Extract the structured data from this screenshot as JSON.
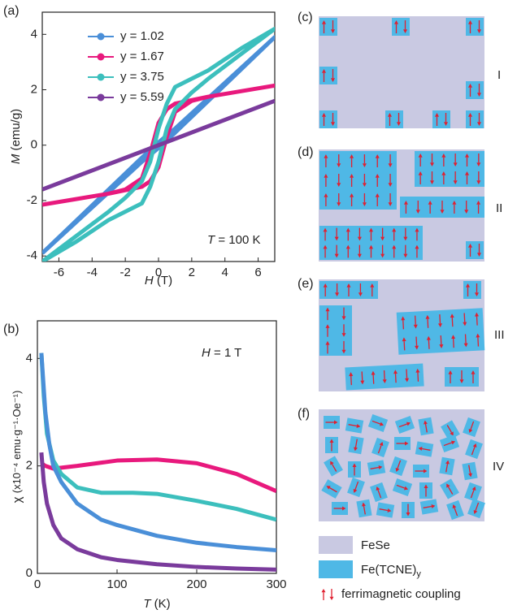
{
  "chart_data": [
    {
      "type": "line",
      "panel_label": "(a)",
      "xlabel": {
        "symbol": "H",
        "unit": "(T)"
      },
      "ylabel": {
        "symbol": "M",
        "unit": "(emu/g)"
      },
      "annotation": {
        "symbol": "T",
        "text": "= 100 K"
      },
      "xlim": [
        -7,
        7
      ],
      "ylim": [
        -4.2,
        4.8
      ],
      "xticks": [
        -6,
        -4,
        -2,
        0,
        2,
        4,
        6
      ],
      "yticks": [
        -4,
        -2,
        0,
        2,
        4
      ],
      "legend": "upper left",
      "series": [
        {
          "name": "y = 1.02",
          "color": "#4a8fd8",
          "x": [
            -7,
            -5,
            -3,
            -1,
            0,
            1,
            3,
            5,
            7,
            5,
            3,
            1,
            0,
            -1,
            -3,
            -5,
            -7
          ],
          "values": [
            -3.9,
            -2.8,
            -1.7,
            -0.6,
            -0.1,
            0.45,
            1.6,
            2.75,
            3.9,
            2.8,
            1.7,
            0.6,
            0.1,
            -0.45,
            -1.6,
            -2.75,
            -3.9
          ]
        },
        {
          "name": "y = 1.67",
          "color": "#e8197d",
          "x": [
            -7,
            -5,
            -3,
            -1,
            -0.5,
            0,
            0.5,
            1,
            2,
            3,
            5,
            7,
            5,
            3,
            1,
            0.5,
            0,
            -0.5,
            -1,
            -2,
            -3,
            -5,
            -7
          ],
          "values": [
            -2.15,
            -1.95,
            -1.75,
            -1.5,
            -1.3,
            -0.8,
            0.3,
            1.2,
            1.6,
            1.75,
            1.95,
            2.15,
            1.95,
            1.75,
            1.5,
            1.3,
            0.8,
            -0.3,
            -1.2,
            -1.6,
            -1.75,
            -1.95,
            -2.15
          ]
        },
        {
          "name": "y = 3.75",
          "color": "#3cbfbd",
          "x": [
            -7,
            -5,
            -3,
            -2,
            -1,
            -0.5,
            0,
            0.5,
            1,
            2,
            3,
            5,
            7,
            5,
            3,
            2,
            1,
            0.5,
            0,
            -0.5,
            -1,
            -2,
            -3,
            -5,
            -7
          ],
          "values": [
            -4.2,
            -3.5,
            -2.7,
            -2.4,
            -2.1,
            -1.5,
            -0.6,
            0.6,
            1.3,
            1.9,
            2.4,
            3.3,
            4.2,
            3.5,
            2.7,
            2.4,
            2.1,
            1.5,
            0.6,
            -0.6,
            -1.3,
            -1.9,
            -2.4,
            -3.3,
            -4.2
          ]
        },
        {
          "name": "y = 5.59",
          "color": "#7a3b9c",
          "x": [
            -7,
            0,
            7
          ],
          "values": [
            -1.6,
            0,
            1.6
          ]
        }
      ]
    },
    {
      "type": "line",
      "panel_label": "(b)",
      "xlabel": {
        "symbol": "T",
        "unit": "(K)"
      },
      "ylabel": {
        "symbol": "χ",
        "unit": "(x10⁻⁴ emu·g⁻¹·Oe⁻¹)"
      },
      "annotation": {
        "symbol": "H",
        "text": "= 1 T"
      },
      "xlim": [
        0,
        300
      ],
      "ylim": [
        0,
        4.7
      ],
      "xticks": [
        0,
        100,
        200,
        300
      ],
      "yticks": [
        0,
        2,
        4
      ],
      "series": [
        {
          "color": "#e8197d",
          "x": [
            5,
            10,
            20,
            50,
            100,
            150,
            200,
            250,
            300
          ],
          "values": [
            2.05,
            2.0,
            1.95,
            2.0,
            2.1,
            2.12,
            2.05,
            1.85,
            1.53
          ]
        },
        {
          "color": "#3cbfbd",
          "x": [
            5,
            8,
            12,
            20,
            30,
            50,
            80,
            120,
            150,
            200,
            250,
            300
          ],
          "values": [
            4.1,
            3.3,
            2.6,
            2.1,
            1.85,
            1.6,
            1.5,
            1.5,
            1.48,
            1.35,
            1.2,
            1.0
          ]
        },
        {
          "color": "#4a8fd8",
          "x": [
            5,
            10,
            15,
            20,
            30,
            50,
            80,
            100,
            150,
            200,
            250,
            300
          ],
          "values": [
            4.1,
            3.0,
            2.4,
            2.0,
            1.7,
            1.3,
            1.0,
            0.9,
            0.7,
            0.57,
            0.49,
            0.43
          ]
        },
        {
          "color": "#7a3b9c",
          "x": [
            5,
            8,
            12,
            20,
            30,
            50,
            80,
            100,
            150,
            200,
            250,
            300
          ],
          "values": [
            2.25,
            1.7,
            1.3,
            0.9,
            0.65,
            0.45,
            0.3,
            0.25,
            0.17,
            0.12,
            0.09,
            0.07
          ]
        }
      ]
    }
  ],
  "diagram": {
    "panels": [
      {
        "label": "(c)",
        "phase": "I"
      },
      {
        "label": "(d)",
        "phase": "II"
      },
      {
        "label": "(e)",
        "phase": "III"
      },
      {
        "label": "(f)",
        "phase": "IV"
      }
    ],
    "legend": {
      "fese": "FeSe",
      "tcne": "Fe(TCNE)",
      "tcne_sub": "y",
      "coupling": "ferrimagnetic coupling"
    }
  }
}
